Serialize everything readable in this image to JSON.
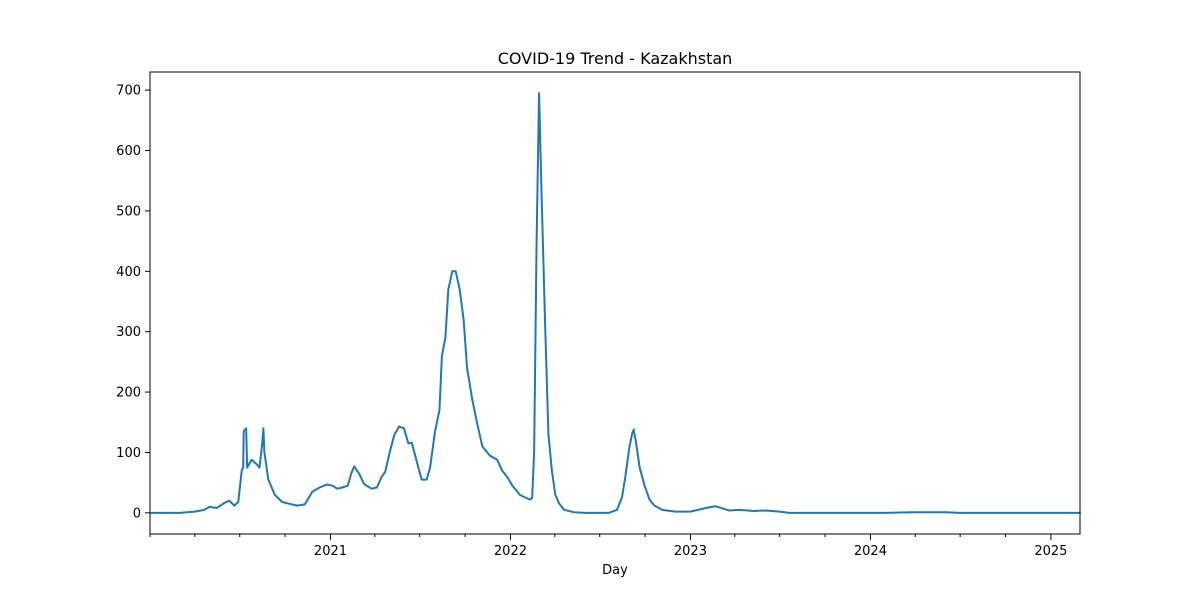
{
  "chart_data": {
    "type": "line",
    "title": "COVID-19 Trend - Kazakhstan",
    "xlabel": "Day",
    "ylabel": "",
    "xlim": [
      "2020-01-01",
      "2025-03-01"
    ],
    "ylim": [
      -35,
      730
    ],
    "grid": false,
    "x_ticks": [
      {
        "date": "2021-01-01",
        "label": "2021"
      },
      {
        "date": "2022-01-01",
        "label": "2022"
      },
      {
        "date": "2023-01-01",
        "label": "2023"
      },
      {
        "date": "2024-01-01",
        "label": "2024"
      },
      {
        "date": "2025-01-01",
        "label": "2025"
      }
    ],
    "x_minor_ticks": [
      "2020-01-01",
      "2020-04-01",
      "2020-07-01",
      "2020-10-01",
      "2021-04-01",
      "2021-07-01",
      "2021-10-01",
      "2022-04-01",
      "2022-07-01",
      "2022-10-01",
      "2023-04-01",
      "2023-07-01",
      "2023-10-01",
      "2024-04-01",
      "2024-07-01",
      "2024-10-01"
    ],
    "y_ticks": [
      0,
      100,
      200,
      300,
      400,
      500,
      600,
      700
    ],
    "series": [
      {
        "name": "",
        "color": "#1f77b4",
        "points": [
          [
            "2020-01-01",
            0
          ],
          [
            "2020-03-01",
            0
          ],
          [
            "2020-04-01",
            2
          ],
          [
            "2020-04-20",
            5
          ],
          [
            "2020-05-01",
            10
          ],
          [
            "2020-05-15",
            8
          ],
          [
            "2020-06-01",
            17
          ],
          [
            "2020-06-10",
            20
          ],
          [
            "2020-06-20",
            12
          ],
          [
            "2020-06-28",
            18
          ],
          [
            "2020-07-05",
            70
          ],
          [
            "2020-07-08",
            75
          ],
          [
            "2020-07-09",
            135
          ],
          [
            "2020-07-14",
            140
          ],
          [
            "2020-07-16",
            75
          ],
          [
            "2020-07-25",
            88
          ],
          [
            "2020-08-05",
            80
          ],
          [
            "2020-08-10",
            75
          ],
          [
            "2020-08-15",
            110
          ],
          [
            "2020-08-18",
            140
          ],
          [
            "2020-08-20",
            100
          ],
          [
            "2020-08-28",
            55
          ],
          [
            "2020-09-10",
            30
          ],
          [
            "2020-09-25",
            18
          ],
          [
            "2020-10-10",
            15
          ],
          [
            "2020-10-25",
            12
          ],
          [
            "2020-11-10",
            14
          ],
          [
            "2020-11-25",
            35
          ],
          [
            "2020-12-10",
            42
          ],
          [
            "2020-12-25",
            47
          ],
          [
            "2021-01-05",
            45
          ],
          [
            "2021-01-15",
            40
          ],
          [
            "2021-01-25",
            42
          ],
          [
            "2021-02-05",
            45
          ],
          [
            "2021-02-12",
            65
          ],
          [
            "2021-02-18",
            77
          ],
          [
            "2021-02-28",
            65
          ],
          [
            "2021-03-10",
            48
          ],
          [
            "2021-03-25",
            40
          ],
          [
            "2021-04-05",
            42
          ],
          [
            "2021-04-15",
            60
          ],
          [
            "2021-04-22",
            68
          ],
          [
            "2021-05-01",
            100
          ],
          [
            "2021-05-10",
            128
          ],
          [
            "2021-05-20",
            143
          ],
          [
            "2021-05-30",
            140
          ],
          [
            "2021-06-08",
            115
          ],
          [
            "2021-06-15",
            116
          ],
          [
            "2021-06-25",
            85
          ],
          [
            "2021-07-05",
            55
          ],
          [
            "2021-07-15",
            55
          ],
          [
            "2021-07-22",
            75
          ],
          [
            "2021-08-01",
            135
          ],
          [
            "2021-08-10",
            170
          ],
          [
            "2021-08-15",
            260
          ],
          [
            "2021-08-22",
            290
          ],
          [
            "2021-08-28",
            370
          ],
          [
            "2021-09-05",
            400
          ],
          [
            "2021-09-12",
            400
          ],
          [
            "2021-09-20",
            370
          ],
          [
            "2021-09-28",
            320
          ],
          [
            "2021-10-05",
            240
          ],
          [
            "2021-10-15",
            190
          ],
          [
            "2021-10-25",
            150
          ],
          [
            "2021-11-05",
            110
          ],
          [
            "2021-11-20",
            95
          ],
          [
            "2021-12-05",
            88
          ],
          [
            "2021-12-15",
            70
          ],
          [
            "2021-12-25",
            60
          ],
          [
            "2022-01-05",
            45
          ],
          [
            "2022-01-20",
            30
          ],
          [
            "2022-02-01",
            25
          ],
          [
            "2022-02-10",
            22
          ],
          [
            "2022-02-14",
            25
          ],
          [
            "2022-02-18",
            100
          ],
          [
            "2022-02-23",
            450
          ],
          [
            "2022-02-28",
            695
          ],
          [
            "2022-03-05",
            530
          ],
          [
            "2022-03-12",
            320
          ],
          [
            "2022-03-19",
            130
          ],
          [
            "2022-03-26",
            70
          ],
          [
            "2022-04-02",
            30
          ],
          [
            "2022-04-10",
            15
          ],
          [
            "2022-04-20",
            5
          ],
          [
            "2022-05-10",
            1
          ],
          [
            "2022-06-01",
            0
          ],
          [
            "2022-07-01",
            0
          ],
          [
            "2022-07-20",
            0
          ],
          [
            "2022-08-05",
            5
          ],
          [
            "2022-08-15",
            25
          ],
          [
            "2022-08-22",
            60
          ],
          [
            "2022-08-30",
            108
          ],
          [
            "2022-09-05",
            132
          ],
          [
            "2022-09-08",
            138
          ],
          [
            "2022-09-12",
            120
          ],
          [
            "2022-09-20",
            75
          ],
          [
            "2022-09-30",
            45
          ],
          [
            "2022-10-10",
            22
          ],
          [
            "2022-10-20",
            12
          ],
          [
            "2022-11-05",
            5
          ],
          [
            "2022-12-01",
            2
          ],
          [
            "2023-01-01",
            2
          ],
          [
            "2023-02-01",
            8
          ],
          [
            "2023-02-20",
            11
          ],
          [
            "2023-03-05",
            8
          ],
          [
            "2023-03-20",
            4
          ],
          [
            "2023-04-10",
            5
          ],
          [
            "2023-05-10",
            3
          ],
          [
            "2023-06-01",
            4
          ],
          [
            "2023-07-01",
            2
          ],
          [
            "2023-07-20",
            0
          ],
          [
            "2023-10-01",
            0
          ],
          [
            "2024-02-01",
            0
          ],
          [
            "2024-04-01",
            1
          ],
          [
            "2024-06-01",
            1
          ],
          [
            "2024-07-01",
            0
          ],
          [
            "2025-03-01",
            0
          ]
        ]
      }
    ]
  }
}
